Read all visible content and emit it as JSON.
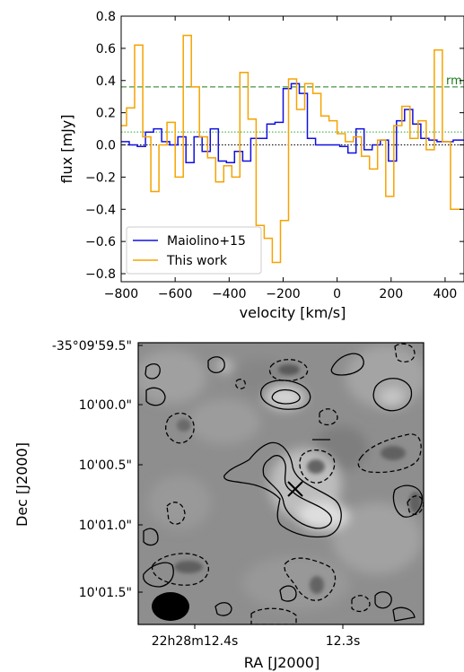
{
  "chart_data": [
    {
      "type": "line",
      "step": true,
      "xlabel": "velocity [km/s]",
      "ylabel": "flux [mJy]",
      "xlim": [
        -800,
        470
      ],
      "ylim": [
        -0.85,
        0.8
      ],
      "xticks": [
        -800,
        -600,
        -400,
        -200,
        0,
        200,
        400
      ],
      "yticks": [
        -0.8,
        -0.6,
        -0.4,
        -0.2,
        0.0,
        0.2,
        0.4,
        0.6,
        0.8
      ],
      "xtick_labels": [
        "−800",
        "−600",
        "−400",
        "−200",
        "0",
        "200",
        "400"
      ],
      "ytick_labels": [
        "−0.8",
        "−0.6",
        "−0.4",
        "−0.2",
        "0.0",
        "0.2",
        "0.4",
        "0.6",
        "0.8"
      ],
      "grid": false,
      "legend_position": "lower-left",
      "series": [
        {
          "name": "Maiolino+15",
          "color": "#1010e0",
          "edges": [
            -800,
            -770,
            -740,
            -710,
            -680,
            -650,
            -620,
            -590,
            -560,
            -530,
            -500,
            -470,
            -440,
            -410,
            -380,
            -350,
            -320,
            -290,
            -260,
            -230,
            -200,
            -170,
            -140,
            -110,
            -80,
            -50,
            -20,
            10,
            40,
            70,
            100,
            130,
            160,
            190,
            220,
            250,
            280,
            310,
            340,
            370,
            400,
            430,
            470
          ],
          "values": [
            0.02,
            0.0,
            -0.01,
            0.08,
            0.1,
            0.02,
            0.0,
            0.05,
            -0.11,
            0.05,
            -0.04,
            0.1,
            -0.1,
            -0.11,
            -0.04,
            -0.1,
            0.04,
            0.04,
            0.13,
            0.14,
            0.35,
            0.38,
            0.32,
            0.04,
            0.0,
            0.0,
            0.0,
            -0.01,
            -0.05,
            0.1,
            -0.03,
            0.0,
            0.03,
            -0.1,
            0.15,
            0.22,
            0.13,
            0.04,
            0.03,
            0.02,
            0.02,
            0.03
          ]
        },
        {
          "name": "This work",
          "color": "#f5a300",
          "edges": [
            -810,
            -780,
            -750,
            -720,
            -690,
            -660,
            -630,
            -600,
            -570,
            -540,
            -510,
            -480,
            -450,
            -420,
            -390,
            -360,
            -330,
            -300,
            -270,
            -240,
            -210,
            -180,
            -150,
            -120,
            -90,
            -60,
            -30,
            0,
            30,
            60,
            90,
            120,
            150,
            180,
            210,
            240,
            270,
            300,
            330,
            360,
            390,
            420,
            460
          ],
          "values": [
            0.12,
            0.23,
            0.62,
            0.05,
            -0.29,
            0.0,
            0.14,
            -0.2,
            0.68,
            0.36,
            0.05,
            -0.08,
            -0.23,
            -0.13,
            -0.2,
            0.45,
            0.16,
            -0.5,
            -0.58,
            -0.73,
            -0.47,
            0.41,
            0.22,
            0.38,
            0.32,
            0.18,
            0.15,
            0.07,
            0.02,
            0.05,
            -0.07,
            -0.15,
            0.03,
            -0.32,
            0.12,
            0.24,
            0.04,
            0.15,
            -0.03,
            0.59,
            0.02,
            -0.4
          ]
        }
      ],
      "hlines": [
        {
          "y": 0.36,
          "style": "dashed",
          "color": "#1a7a1a",
          "label": "rm"
        },
        {
          "y": 0.08,
          "style": "dotted",
          "color": "#22aa22"
        },
        {
          "y": 0.0,
          "style": "dotted",
          "color": "#000000"
        }
      ]
    },
    {
      "type": "heatmap",
      "xlabel": "RA [J2000]",
      "ylabel": "Dec [J2000]",
      "xtick_labels": [
        "22h28m12.4s",
        "12.3s"
      ],
      "ytick_labels": [
        "-35°09'59.5\"",
        "10'00.0\"",
        "10'00.5\"",
        "10'01.0\"",
        "10'01.5\""
      ],
      "colormap": "gray",
      "contours": "solid positive, dashed negative",
      "beam_color": "#000000"
    }
  ]
}
